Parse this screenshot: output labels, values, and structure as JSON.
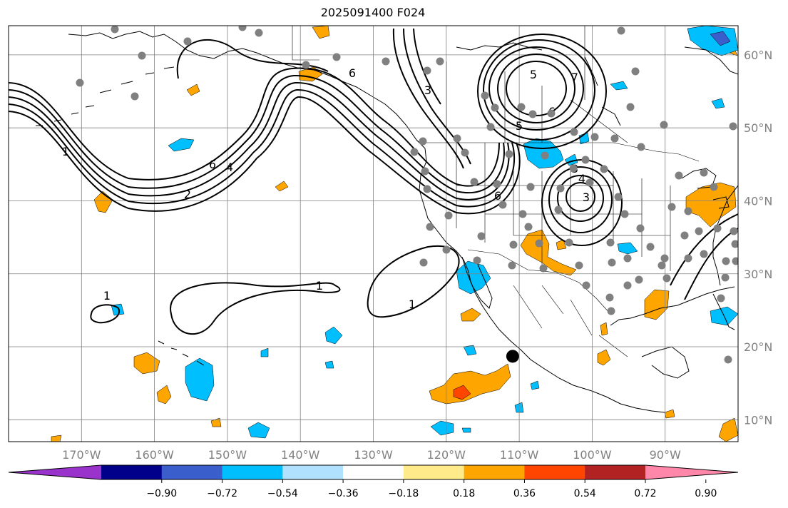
{
  "title": "2025091400 F024",
  "map": {
    "projection": "PlateCarree",
    "extent_lon": [
      -180,
      -80
    ],
    "extent_lat": [
      7,
      64
    ],
    "lon_ticks": [
      {
        "lon": -170,
        "label": "170°W"
      },
      {
        "lon": -160,
        "label": "160°W"
      },
      {
        "lon": -150,
        "label": "150°W"
      },
      {
        "lon": -140,
        "label": "140°W"
      },
      {
        "lon": -130,
        "label": "130°W"
      },
      {
        "lon": -120,
        "label": "120°W"
      },
      {
        "lon": -110,
        "label": "110°W"
      },
      {
        "lon": -100,
        "label": "100°W"
      },
      {
        "lon": -90,
        "label": "90°W"
      }
    ],
    "lat_ticks": [
      {
        "lat": 60,
        "label": "60°N"
      },
      {
        "lat": 50,
        "label": "50°N"
      },
      {
        "lat": 40,
        "label": "40°N"
      },
      {
        "lat": 30,
        "label": "30°N"
      },
      {
        "lat": 20,
        "label": "20°N"
      },
      {
        "lat": 10,
        "label": "10°N"
      }
    ],
    "grid": true,
    "contour_labels": [
      "1",
      "1",
      "1",
      "1",
      "2",
      "4",
      "6",
      "6",
      "5",
      "6",
      "3",
      "4",
      "3",
      "7",
      "5",
      "3",
      "6"
    ],
    "marker_big": {
      "lon": -110.9,
      "lat": 18.7,
      "color": "#000000"
    },
    "station_color": "#808080"
  },
  "colorbar": {
    "colors": [
      "#9933cc",
      "#00008b",
      "#3a5fcd",
      "#00bfff",
      "#b0e2ff",
      "#ffffff",
      "#ffeb8a",
      "#ffa500",
      "#ff4500",
      "#b22222",
      "#ff88aa"
    ],
    "labels": [
      "−0.90",
      "−0.72",
      "−0.54",
      "−0.36",
      "−0.18",
      "0.18",
      "0.36",
      "0.54",
      "0.72",
      "0.90"
    ],
    "extend": "both"
  }
}
